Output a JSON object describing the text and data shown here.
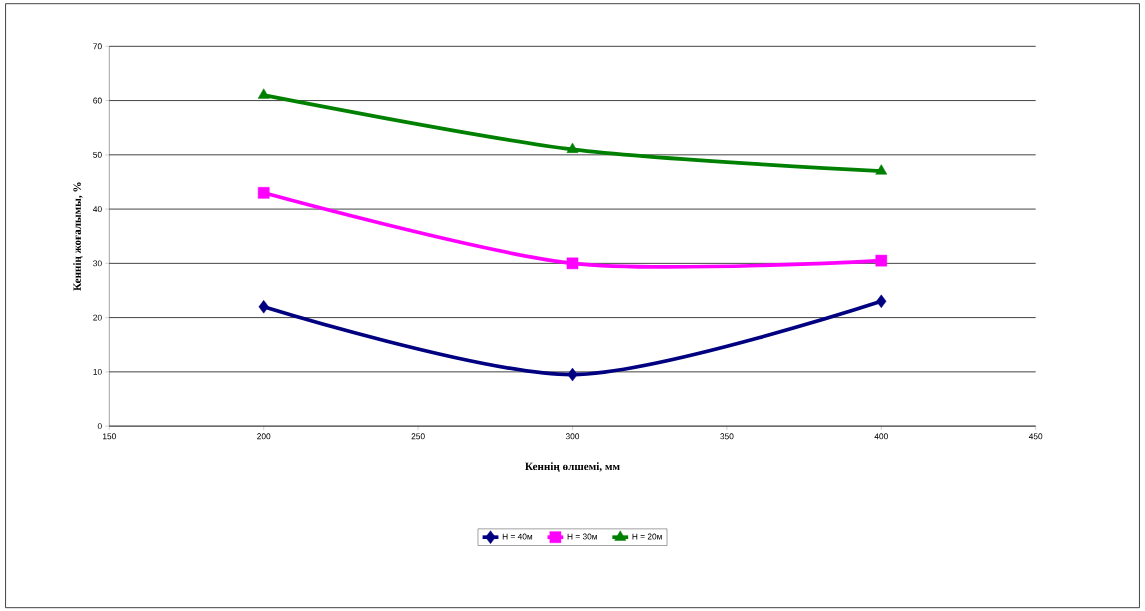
{
  "chart_data": {
    "type": "line",
    "xlabel": "Кеннің өлшемі, мм",
    "ylabel": "Кеннің жоғалымы, %",
    "x": [
      200,
      300,
      400
    ],
    "series": [
      {
        "name": "H = 40м",
        "color": "#000080",
        "marker": "diamond",
        "values": [
          22,
          9.5,
          23
        ]
      },
      {
        "name": "H = 30м",
        "color": "#ff00ff",
        "marker": "square",
        "values": [
          43,
          30,
          30.5
        ]
      },
      {
        "name": "H = 20м",
        "color": "#008000",
        "marker": "triangle",
        "values": [
          61,
          51,
          47
        ]
      }
    ],
    "xlim": [
      150,
      450
    ],
    "xticks": [
      150,
      200,
      250,
      300,
      350,
      400,
      450
    ],
    "ylim": [
      0,
      70
    ],
    "yticks": [
      0,
      10,
      20,
      30,
      40,
      50,
      60,
      70
    ],
    "grid": "y",
    "legend": "bottom",
    "line_style": "solid"
  }
}
